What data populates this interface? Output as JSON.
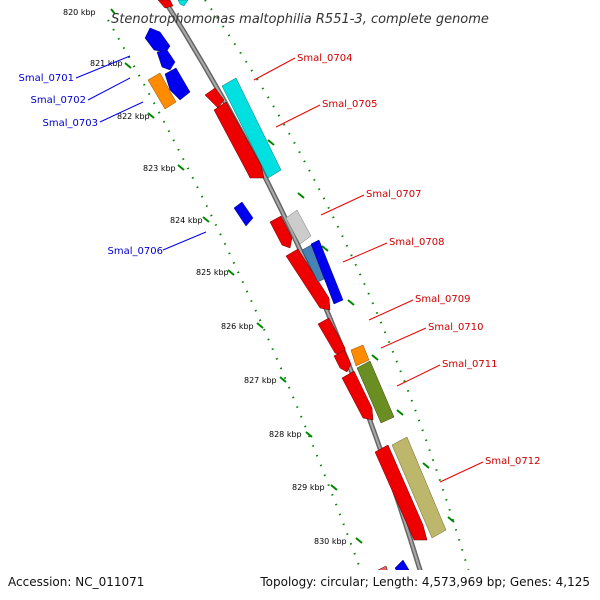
{
  "title": "Stenotrophomonas maltophilia R551-3, complete genome",
  "footer": {
    "accession": "Accession: NC_011071",
    "summary": "Topology: circular; Length: 4,573,969 bp; Genes: 4,125"
  },
  "ticks": [
    "820 kbp",
    "821 kbp",
    "822 kbp",
    "823 kbp",
    "824 kbp",
    "825 kbp",
    "826 kbp",
    "827 kbp",
    "828 kbp",
    "829 kbp",
    "830 kbp"
  ],
  "genes": [
    {
      "name": "Smal_0701",
      "strand": "reverse",
      "color": "#0000ee"
    },
    {
      "name": "Smal_0702",
      "strand": "reverse",
      "color": "#0000ee"
    },
    {
      "name": "Smal_0703",
      "strand": "reverse",
      "color": "#0000ee"
    },
    {
      "name": "Smal_0704",
      "strand": "forward",
      "color": "#ee0000"
    },
    {
      "name": "Smal_0705",
      "strand": "forward",
      "color": "#ee0000"
    },
    {
      "name": "Smal_0706",
      "strand": "reverse",
      "color": "#0000ee"
    },
    {
      "name": "Smal_0707",
      "strand": "forward",
      "color": "#ee0000"
    },
    {
      "name": "Smal_0708",
      "strand": "forward",
      "color": "#ee0000"
    },
    {
      "name": "Smal_0709",
      "strand": "forward",
      "color": "#ee0000"
    },
    {
      "name": "Smal_0710",
      "strand": "forward",
      "color": "#ee0000"
    },
    {
      "name": "Smal_0711",
      "strand": "forward",
      "color": "#ee0000"
    },
    {
      "name": "Smal_0712",
      "strand": "forward",
      "color": "#ee0000"
    }
  ],
  "colors": {
    "forward_cds": "#ee0000",
    "reverse_cds": "#0000ee",
    "backbone": "#888888",
    "tick_dots": "#008800",
    "cyan_feature": "#00e0e0",
    "gray_feature": "#cccccc",
    "steelblue_feature": "#4682b4",
    "orange_feature": "#ff8c00",
    "olive_feature": "#6b8e23",
    "khaki_feature": "#bdb76b"
  }
}
